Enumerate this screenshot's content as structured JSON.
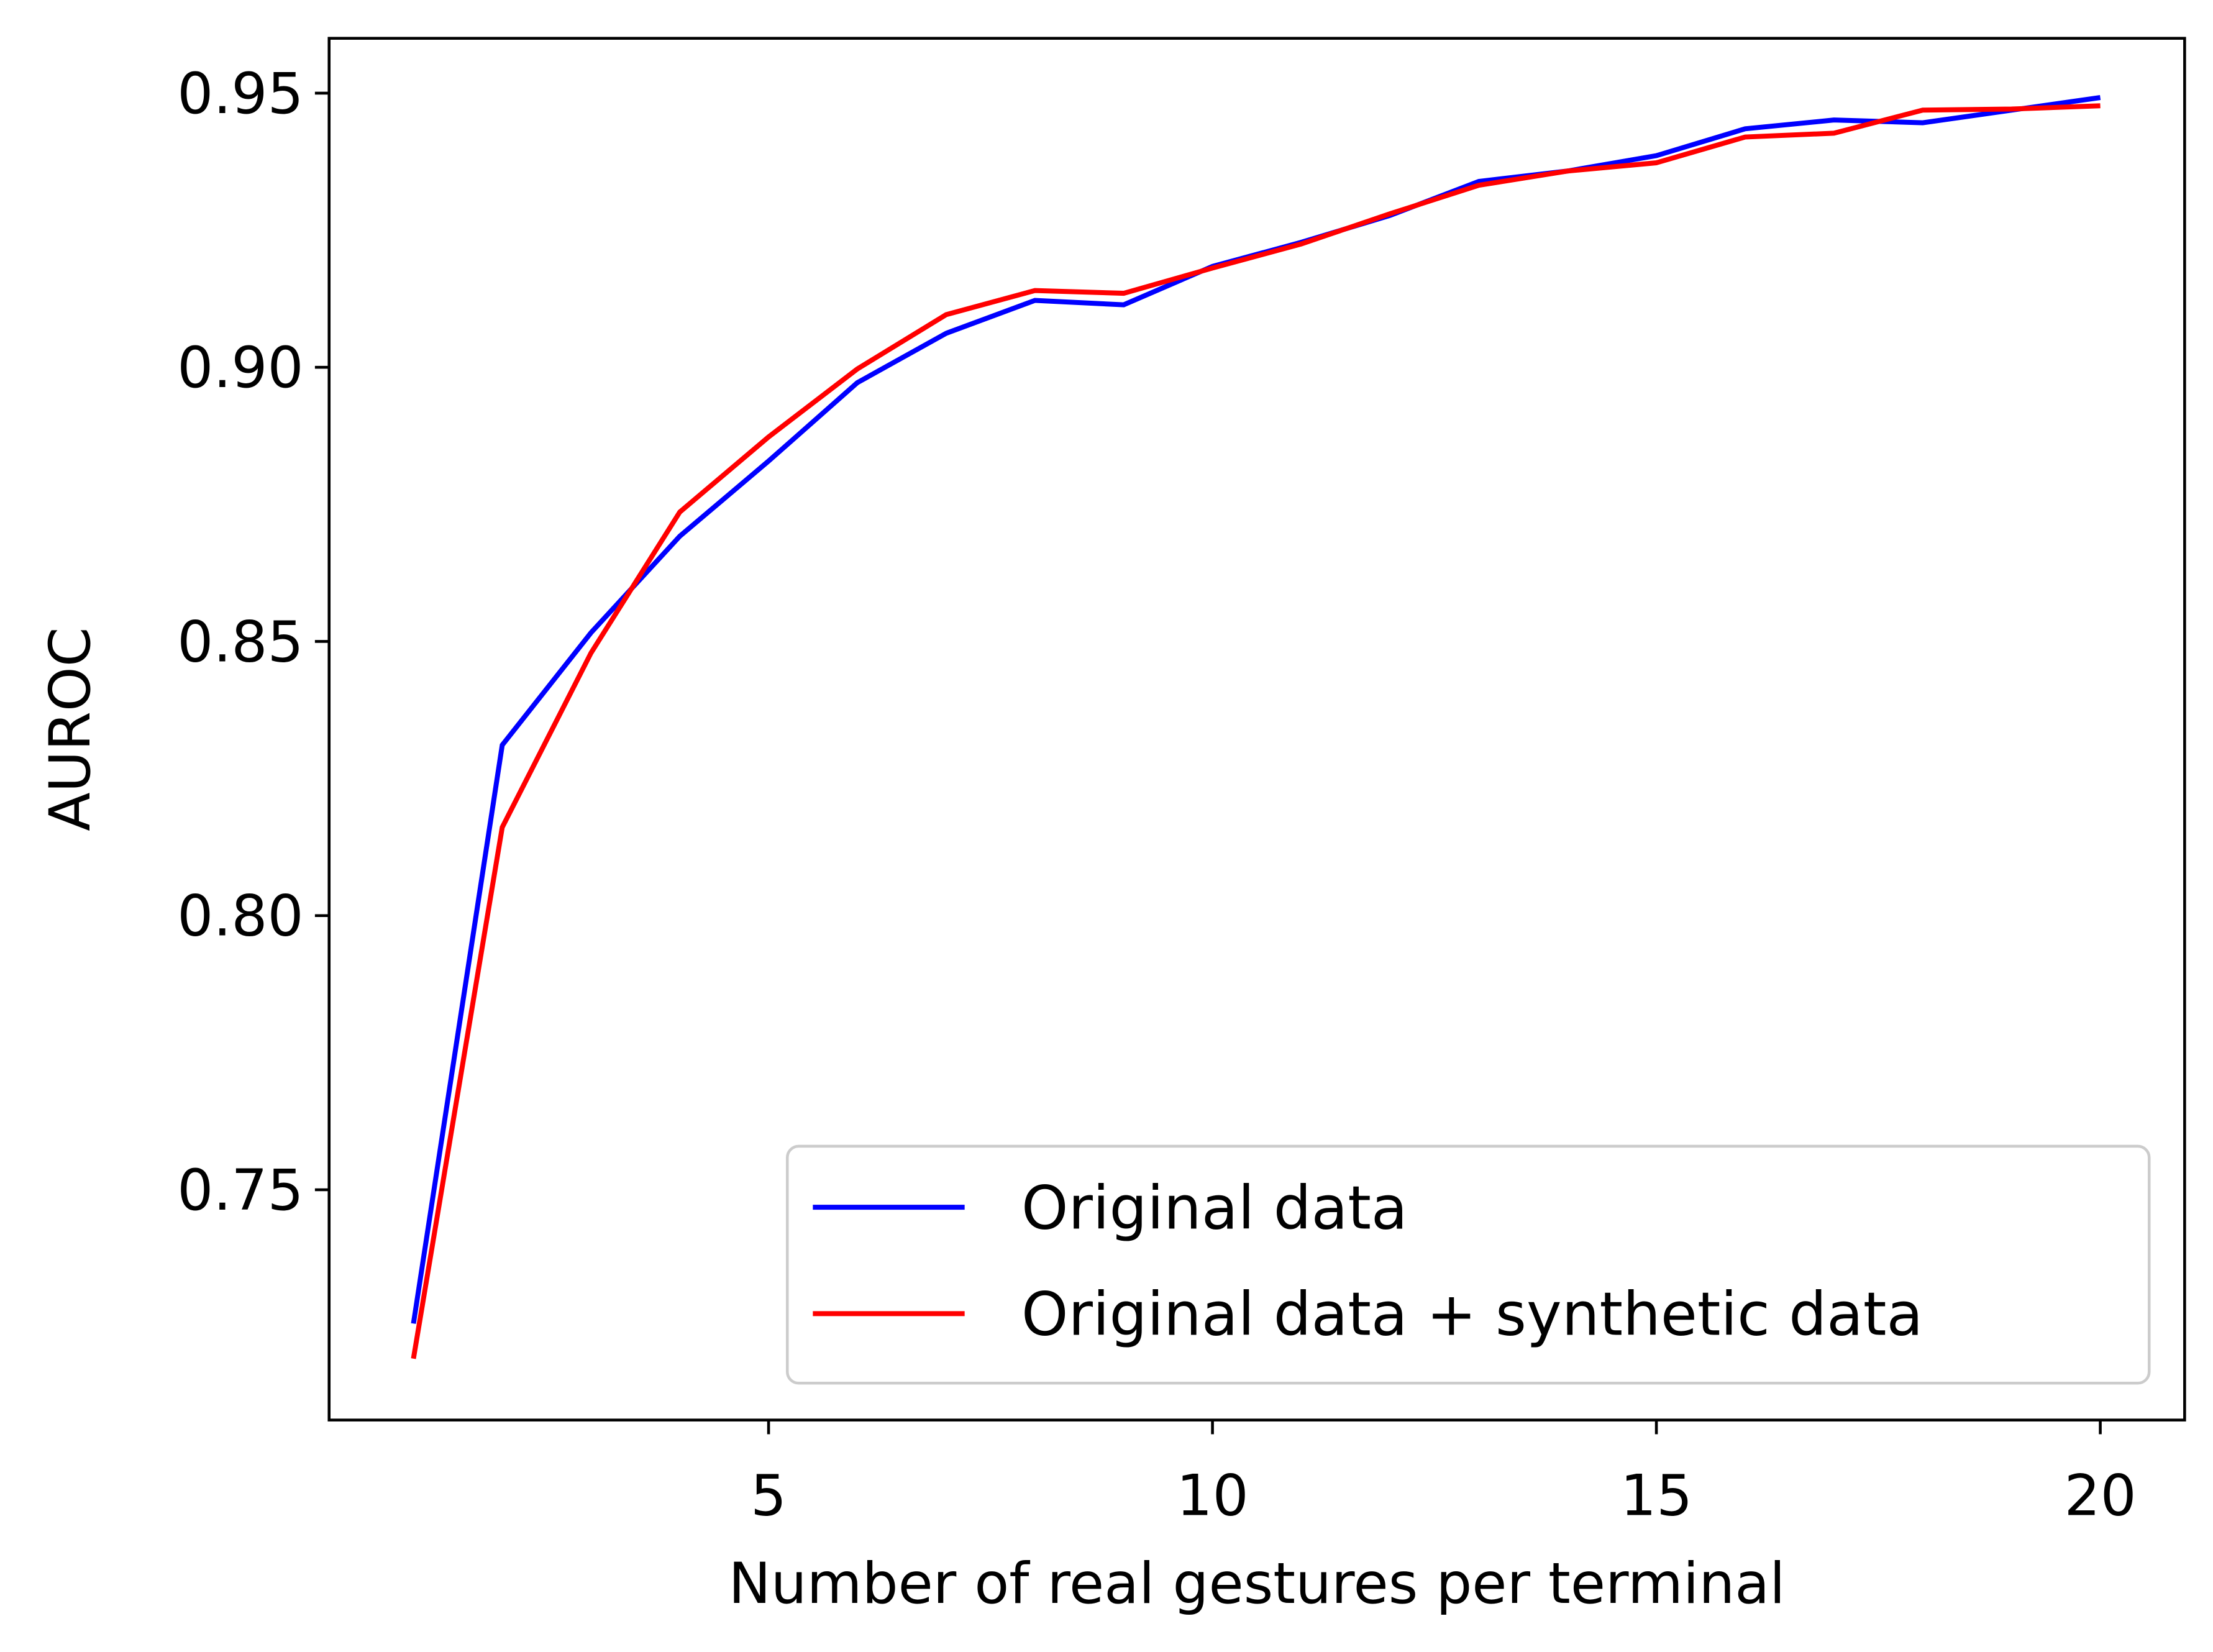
{
  "chart_data": {
    "type": "line",
    "x_label": "Number of real gestures per terminal",
    "y_label": "AUROC",
    "x": [
      1,
      2,
      3,
      4,
      5,
      6,
      7,
      8,
      9,
      10,
      11,
      12,
      13,
      14,
      15,
      16,
      17,
      18,
      19,
      20
    ],
    "series": [
      {
        "name": "Original data",
        "color": "#0000ff",
        "values": [
          0.7256,
          0.8311,
          0.8516,
          0.8692,
          0.8829,
          0.8972,
          0.9062,
          0.9122,
          0.9114,
          0.9184,
          0.9228,
          0.9277,
          0.9339,
          0.9358,
          0.9386,
          0.9435,
          0.9451,
          0.9446,
          0.9469,
          0.9492
        ]
      },
      {
        "name": "Original data + synthetic data",
        "color": "#ff0000",
        "values": [
          0.7192,
          0.8161,
          0.8479,
          0.8736,
          0.8873,
          0.8997,
          0.9096,
          0.914,
          0.9135,
          0.9181,
          0.9225,
          0.928,
          0.9332,
          0.9358,
          0.9373,
          0.942,
          0.9427,
          0.9469,
          0.9471,
          0.9477
        ]
      }
    ],
    "xlim": [
      0.05,
      20.95
    ],
    "ylim": [
      0.708,
      0.96
    ],
    "xticks": [
      5,
      10,
      15,
      20
    ],
    "yticks": [
      0.75,
      {
        "value": 0.8,
        "label": "0.80"
      },
      0.85,
      {
        "value": 0.9,
        "label": "0.90"
      },
      0.95
    ],
    "legend_position": "lower right",
    "grid": false
  }
}
